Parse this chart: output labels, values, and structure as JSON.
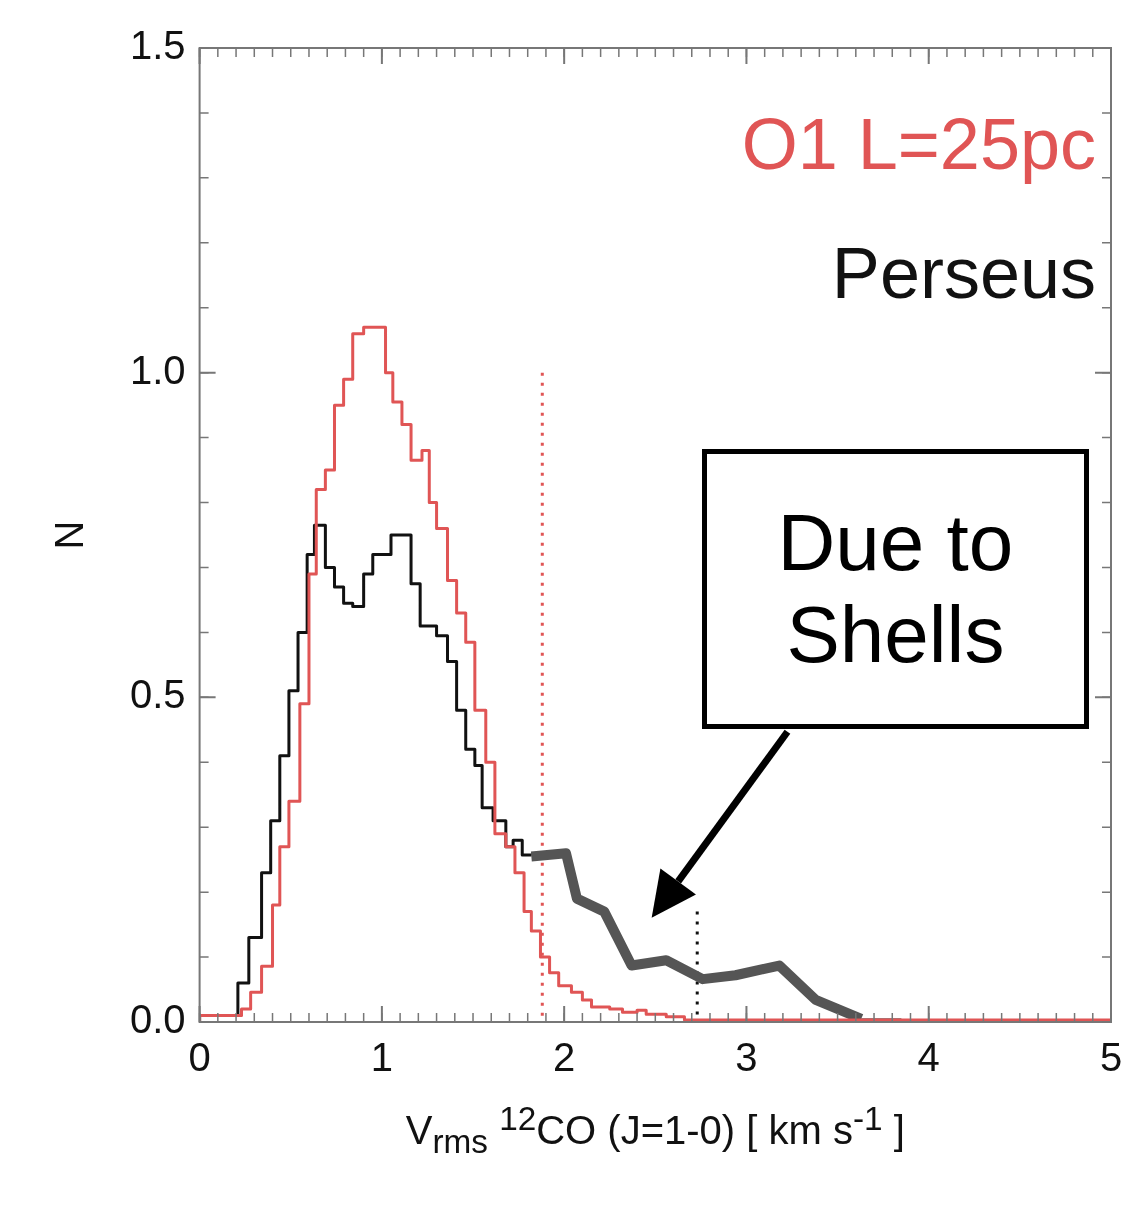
{
  "chart_data": {
    "type": "step",
    "xlabel": "V$_{rms}$ $^{12}$CO (J=1-0) [ km s$^{-1}$ ]",
    "ylabel": "N",
    "xlim": [
      0,
      5
    ],
    "xticks": [
      0,
      1,
      2,
      3,
      4,
      5
    ],
    "ylim": [
      0,
      1.5
    ],
    "yticks": [
      {
        "value": 0,
        "label": "0.0"
      },
      {
        "value": 0.5,
        "label": "0.5"
      },
      {
        "value": 1,
        "label": "1.0"
      },
      {
        "value": 1.5,
        "label": "1.5"
      }
    ],
    "grid": false,
    "legend": false,
    "marker": "none",
    "series": [
      {
        "name": "O1 L=25pc",
        "color": "#e05555",
        "x": [
          0,
          0.23,
          0.28,
          0.34,
          0.4,
          0.44,
          0.49,
          0.55,
          0.6,
          0.64,
          0.69,
          0.74,
          0.79,
          0.84,
          0.9,
          1.02,
          1.06,
          1.11,
          1.16,
          1.22,
          1.26,
          1.3,
          1.36,
          1.41,
          1.46,
          1.51,
          1.57,
          1.62,
          1.68,
          1.73,
          1.78,
          1.82,
          1.87,
          1.92,
          1.97,
          2.04,
          2.1,
          2.15,
          2.25,
          2.32,
          2.4,
          2.45,
          2.56,
          2.66,
          2.73,
          5
        ],
        "values": [
          0,
          0.01,
          0.02,
          0.046,
          0.086,
          0.18,
          0.27,
          0.34,
          0.49,
          0.69,
          0.82,
          0.85,
          0.95,
          0.99,
          1.06,
          1.07,
          1.0,
          0.955,
          0.92,
          0.865,
          0.88,
          0.8,
          0.76,
          0.68,
          0.63,
          0.585,
          0.48,
          0.4,
          0.29,
          0.27,
          0.23,
          0.17,
          0.14,
          0.1,
          0.076,
          0.056,
          0.046,
          0.034,
          0.023,
          0.02,
          0.015,
          0.018,
          0.012,
          0.008,
          0.003,
          0.003
        ]
      },
      {
        "name": "Perseus",
        "color": "#111111",
        "x": [
          0,
          0.21,
          0.27,
          0.34,
          0.39,
          0.44,
          0.49,
          0.54,
          0.59,
          0.63,
          0.69,
          0.74,
          0.79,
          0.84,
          0.9,
          0.95,
          1.05,
          1.1,
          1.16,
          1.21,
          1.3,
          1.36,
          1.41,
          1.46,
          1.51,
          1.55,
          1.61,
          1.68,
          1.72,
          1.77,
          1.82,
          1.85,
          3.63,
          3.85
        ],
        "values": [
          0,
          0.01,
          0.06,
          0.13,
          0.23,
          0.31,
          0.41,
          0.51,
          0.6,
          0.72,
          0.765,
          0.7,
          0.67,
          0.645,
          0.64,
          0.69,
          0.72,
          0.75,
          0.75,
          0.675,
          0.61,
          0.595,
          0.555,
          0.48,
          0.42,
          0.395,
          0.33,
          0.31,
          0.27,
          0.28,
          0.257,
          null,
          0.003,
          0.003
        ]
      },
      {
        "type": "line",
        "color": "#555555",
        "x": [
          1.82,
          2.01,
          2.07,
          2.22,
          2.37,
          2.56,
          2.76,
          2.94,
          3.18,
          3.38,
          3.63
        ],
        "values": [
          0.255,
          0.26,
          0.19,
          0.17,
          0.087,
          0.095,
          0.066,
          0.072,
          0.087,
          0.034,
          0.005
        ]
      },
      {
        "type": "line",
        "color": "#e05555",
        "line_style": "dotted",
        "x": [
          1.88,
          1.88
        ],
        "values": [
          1.0,
          0
        ]
      },
      {
        "type": "line",
        "color": "#111111",
        "line_style": "dotted",
        "x": [
          2.73,
          2.73
        ],
        "values": [
          0.17,
          0
        ]
      }
    ],
    "annotations": [
      "Due to Shells"
    ]
  }
}
